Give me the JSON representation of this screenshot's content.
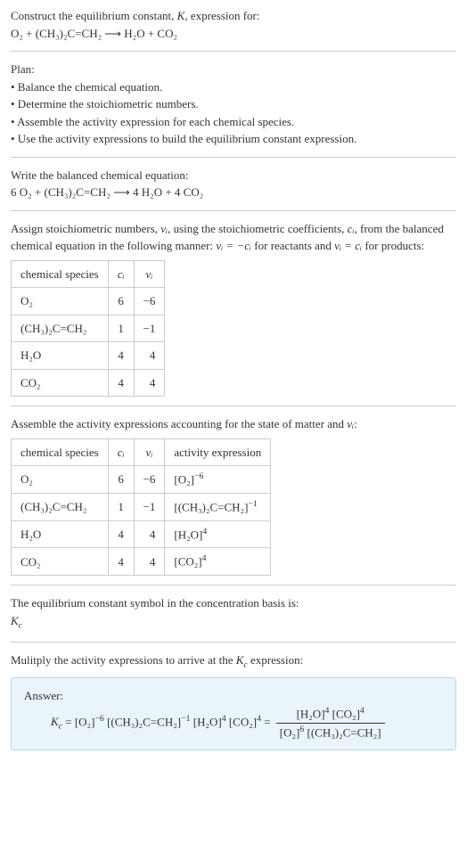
{
  "intro": {
    "line1_prefix": "Construct the equilibrium constant, ",
    "line1_K": "K",
    "line1_suffix": ", expression for:",
    "equation_lhs": "O₂ + (CH₃)₂C=CH₂",
    "equation_arrow": "⟶",
    "equation_rhs": "H₂O + CO₂"
  },
  "plan": {
    "title": "Plan:",
    "b1": "• Balance the chemical equation.",
    "b2": "• Determine the stoichiometric numbers.",
    "b3": "• Assemble the activity expression for each chemical species.",
    "b4": "• Use the activity expressions to build the equilibrium constant expression."
  },
  "balanced": {
    "title": "Write the balanced chemical equation:",
    "lhs": "6 O₂ + (CH₃)₂C=CH₂",
    "arrow": "⟶",
    "rhs": "4 H₂O + 4 CO₂"
  },
  "stoich": {
    "text_pre": "Assign stoichiometric numbers, ",
    "nu_i": "νᵢ",
    "text_mid1": ", using the stoichiometric coefficients, ",
    "c_i": "cᵢ",
    "text_mid2": ", from the balanced chemical equation in the following manner: ",
    "eq1": "νᵢ = −cᵢ",
    "text_mid3": " for reactants and ",
    "eq2": "νᵢ = cᵢ",
    "text_end": " for products:",
    "headers": {
      "species": "chemical species",
      "ci": "cᵢ",
      "nui": "νᵢ"
    },
    "rows": [
      {
        "species": "O₂",
        "ci": "6",
        "nui": "−6"
      },
      {
        "species": "(CH₃)₂C=CH₂",
        "ci": "1",
        "nui": "−1"
      },
      {
        "species": "H₂O",
        "ci": "4",
        "nui": "4"
      },
      {
        "species": "CO₂",
        "ci": "4",
        "nui": "4"
      }
    ]
  },
  "activity": {
    "title_pre": "Assemble the activity expressions accounting for the state of matter and ",
    "nu_i": "νᵢ",
    "title_post": ":",
    "headers": {
      "species": "chemical species",
      "ci": "cᵢ",
      "nui": "νᵢ",
      "expr": "activity expression"
    },
    "rows": [
      {
        "species": "O₂",
        "ci": "6",
        "nui": "−6",
        "expr_base": "[O₂]",
        "expr_exp": "−6"
      },
      {
        "species": "(CH₃)₂C=CH₂",
        "ci": "1",
        "nui": "−1",
        "expr_base": "[(CH₃)₂C=CH₂]",
        "expr_exp": "−1"
      },
      {
        "species": "H₂O",
        "ci": "4",
        "nui": "4",
        "expr_base": "[H₂O]",
        "expr_exp": "4"
      },
      {
        "species": "CO₂",
        "ci": "4",
        "nui": "4",
        "expr_base": "[CO₂]",
        "expr_exp": "4"
      }
    ]
  },
  "symbol": {
    "title": "The equilibrium constant symbol in the concentration basis is:",
    "kc": "K",
    "kc_sub": "c"
  },
  "multiply": {
    "text_pre": "Mulitply the activity expressions to arrive at the ",
    "kc": "K",
    "kc_sub": "c",
    "text_post": " expression:"
  },
  "answer": {
    "label": "Answer:",
    "kc": "K",
    "kc_sub": "c",
    "eq_sign": " = ",
    "term1_base": "[O₂]",
    "term1_exp": "−6",
    "term2_base": " [(CH₃)₂C=CH₂]",
    "term2_exp": "−1",
    "term3_base": " [H₂O]",
    "term3_exp": "4",
    "term4_base": " [CO₂]",
    "term4_exp": "4",
    "eq_sign2": " = ",
    "num1_base": "[H₂O]",
    "num1_exp": "4",
    "num2_base": " [CO₂]",
    "num2_exp": "4",
    "den1_base": "[O₂]",
    "den1_exp": "6",
    "den2_base": " [(CH₃)₂C=CH₂]"
  },
  "colors": {
    "text": "#333333",
    "rule": "#cccccc",
    "answer_bg": "#eaf4fb",
    "answer_border": "#b8d8ea"
  }
}
